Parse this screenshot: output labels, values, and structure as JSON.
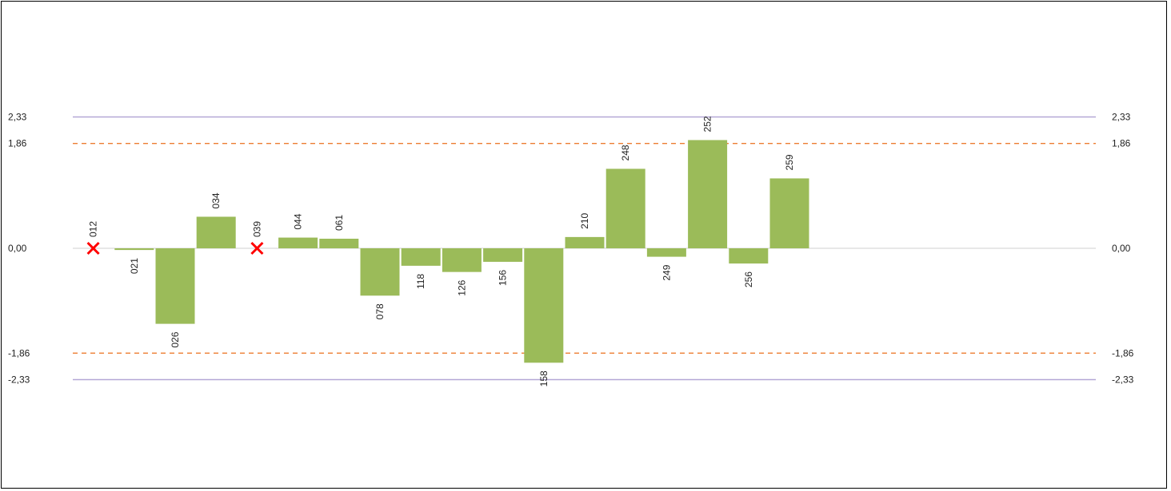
{
  "chart_data": {
    "type": "bar",
    "title": "",
    "xlabel": "",
    "ylabel": "",
    "ylim": [
      -3.87,
      3.87
    ],
    "grid": false,
    "legend": "none",
    "colors": {
      "bar": "#9bbb59",
      "control_limit": "#b4a7d6",
      "warning_limit": "#ed7d31",
      "zero_line": "#d9d9d9",
      "excluded_marker": "#ff0000"
    },
    "ticks_left": [
      "2,33",
      "1,86",
      "0,00",
      "-1,86",
      "-2,33"
    ],
    "ticks_right": [
      "2,33",
      "1,86",
      "0,00",
      "-1,86",
      "-2,33"
    ],
    "tick_values": [
      2.33,
      1.86,
      0.0,
      -1.86,
      -2.33
    ],
    "reference_lines": [
      {
        "value": 2.33,
        "style": "solid",
        "role": "control"
      },
      {
        "value": 1.86,
        "style": "dashed",
        "role": "warning"
      },
      {
        "value": 0.0,
        "style": "solid",
        "role": "zero"
      },
      {
        "value": -1.86,
        "style": "dashed",
        "role": "warning"
      },
      {
        "value": -2.33,
        "style": "solid",
        "role": "control"
      }
    ],
    "categories": [
      "012",
      "021",
      "026",
      "034",
      "039",
      "044",
      "061",
      "078",
      "118",
      "126",
      "156",
      "158",
      "210",
      "248",
      "249",
      "252",
      "256",
      "259"
    ],
    "values": [
      null,
      -0.03,
      -1.34,
      0.56,
      null,
      0.19,
      0.17,
      -0.84,
      -0.31,
      -0.42,
      -0.24,
      -2.03,
      0.2,
      1.41,
      -0.15,
      1.92,
      -0.27,
      1.24
    ],
    "excluded": [
      "012",
      "039"
    ]
  }
}
